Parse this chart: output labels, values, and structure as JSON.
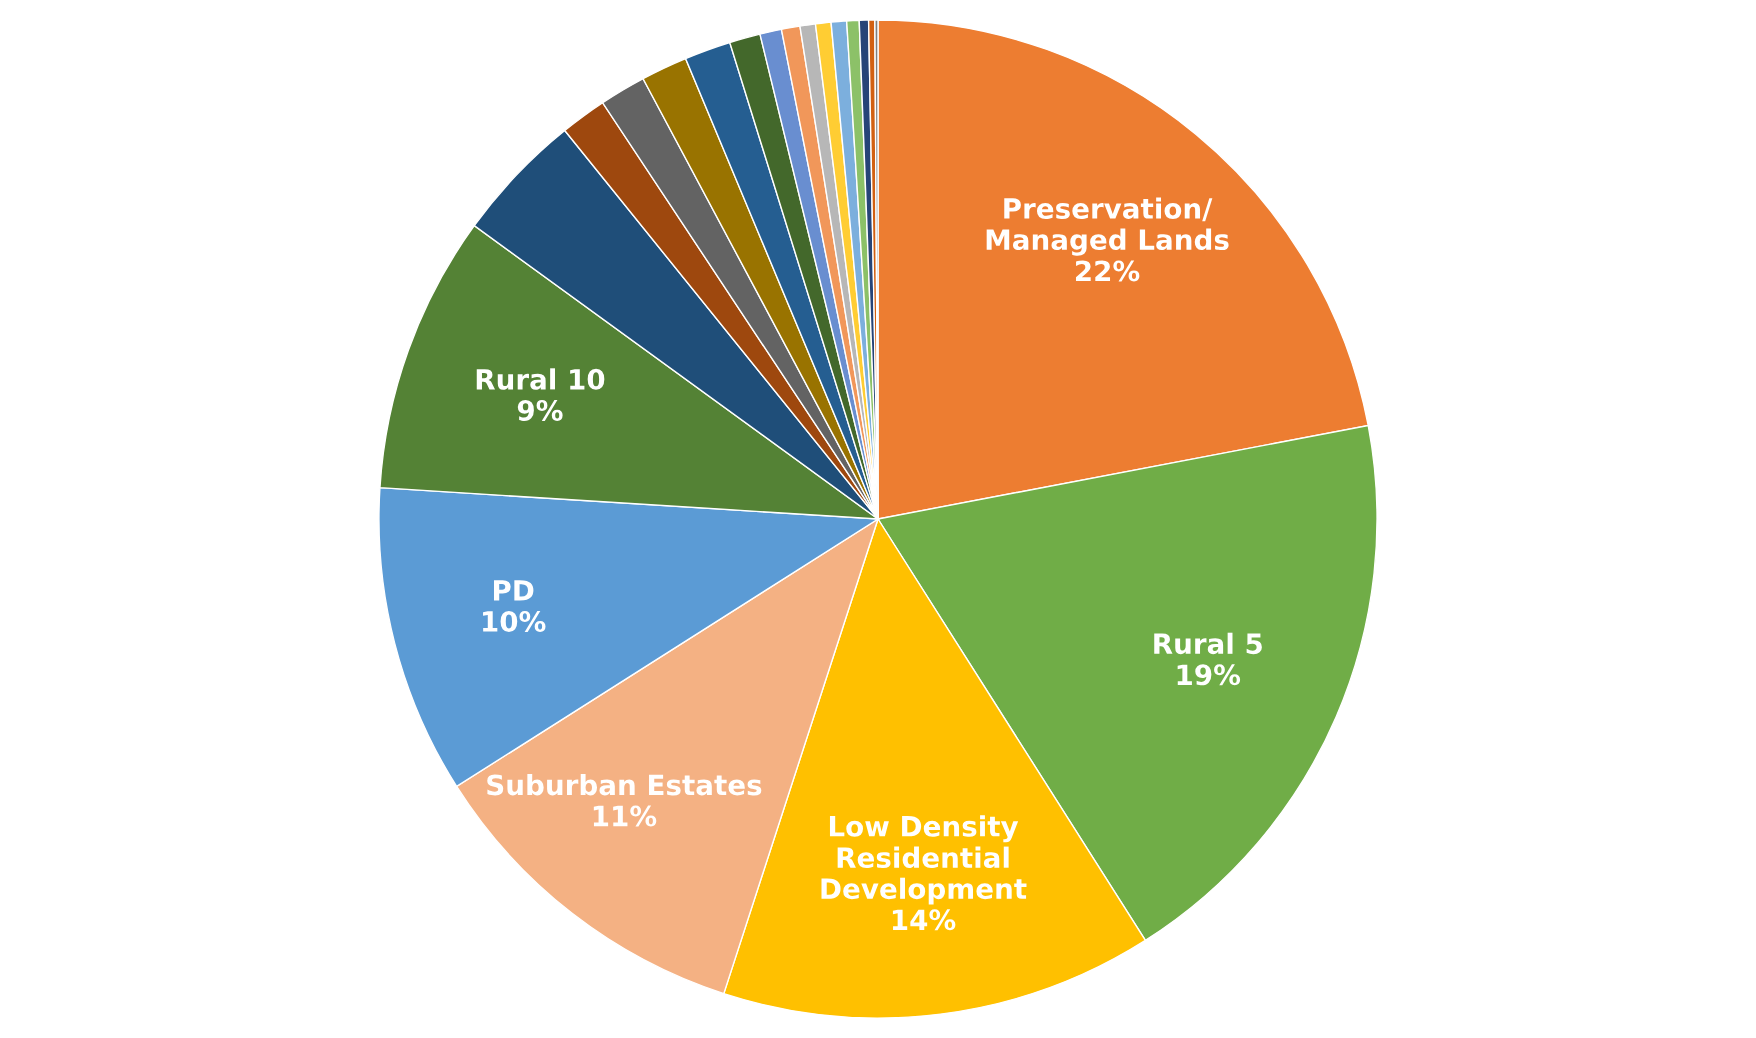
{
  "chart_data": {
    "type": "pie",
    "categories": [
      "Preservation/\nManaged Lands",
      "Rural 5",
      "Low Density\nResidential\nDevelopment",
      "Suburban Estates",
      "PD",
      "Rural 10",
      null,
      null,
      null,
      null,
      null,
      null,
      null,
      null,
      null,
      null,
      null,
      null,
      null,
      null,
      null
    ],
    "values": [
      22,
      19,
      14,
      11,
      10,
      9,
      4.2,
      1.5,
      1.5,
      1.5,
      1.5,
      1.0,
      0.7,
      0.6,
      0.5,
      0.5,
      0.5,
      0.4,
      0.3,
      0.2,
      0.1
    ],
    "value_labels": [
      "22%",
      "19%",
      "14%",
      "11%",
      "10%",
      "9%",
      null,
      null,
      null,
      null,
      null,
      null,
      null,
      null,
      null,
      null,
      null,
      null,
      null,
      null,
      null
    ],
    "colors": [
      "#ed7d31",
      "#70ad47",
      "#ffc000",
      "#f4b183",
      "#5b9bd5",
      "#548235",
      "#1f4e79",
      "#9e480e",
      "#636363",
      "#997300",
      "#255e91",
      "#43682b",
      "#698ed0",
      "#f1975a",
      "#b7b7b7",
      "#ffcd33",
      "#7cafdd",
      "#8cc168",
      "#264478",
      "#d26012",
      "#7f7f7f"
    ],
    "legend": false
  }
}
